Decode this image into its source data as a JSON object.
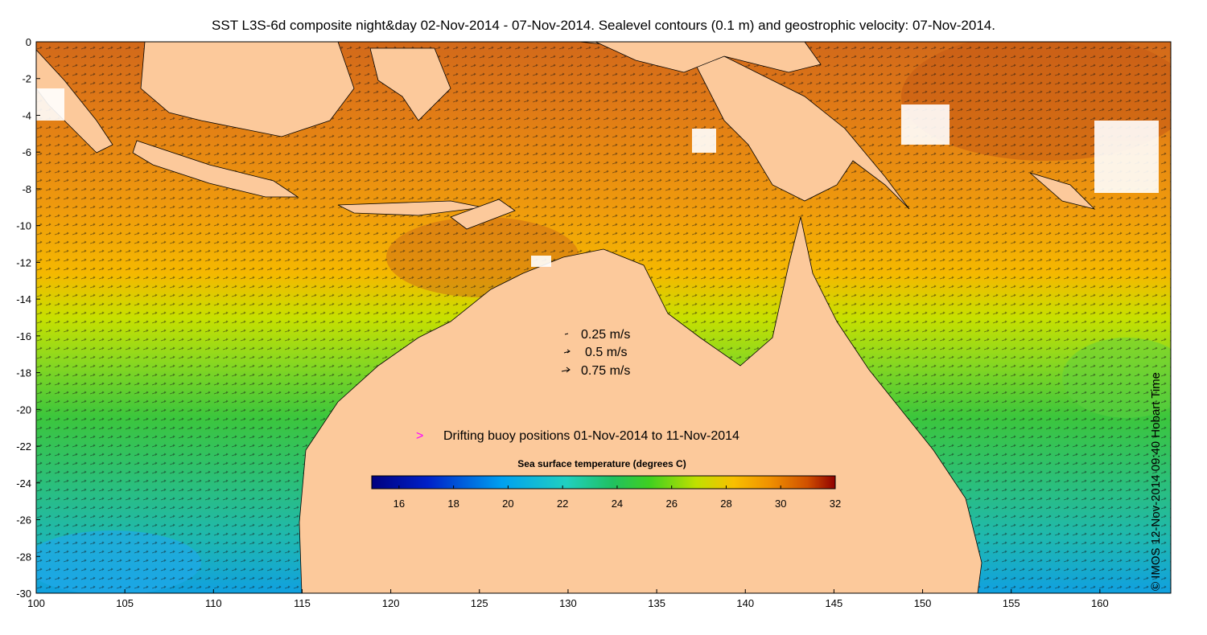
{
  "title": "SST L3S-6d composite night&day 02-Nov-2014 - 07-Nov-2014. Sealevel contours (0.1 m) and geostrophic velocity: 07-Nov-2014.",
  "credit": "© IMOS 12-Nov-2014 09:40 Hobart Time",
  "x_ticks": [
    "100",
    "105",
    "110",
    "115",
    "120",
    "125",
    "130",
    "135",
    "140",
    "145",
    "150",
    "155",
    "160"
  ],
  "y_ticks": [
    "0",
    "-2",
    "-4",
    "-6",
    "-8",
    "-10",
    "-12",
    "-14",
    "-16",
    "-18",
    "-20",
    "-22",
    "-24",
    "-26",
    "-28",
    "-30"
  ],
  "velocity_legend": [
    {
      "speed": 0.25,
      "label": "0.25 m/s"
    },
    {
      "speed": 0.5,
      "label": "0.5 m/s"
    },
    {
      "speed": 0.75,
      "label": "0.75 m/s"
    }
  ],
  "buoy_legend": {
    "symbol": ">",
    "label": "Drifting buoy positions 01-Nov-2014 to 11-Nov-2014",
    "color": "#ff00ff"
  },
  "colorbar": {
    "title": "Sea surface temperature (degrees C)",
    "min": 15,
    "max": 32,
    "tick_labels": [
      "16",
      "18",
      "20",
      "22",
      "24",
      "26",
      "28",
      "30",
      "32"
    ]
  },
  "map_extent": {
    "lon": [
      100,
      164
    ],
    "lat": [
      -30,
      0
    ]
  },
  "colors": {
    "land": "#fcc99b",
    "warm_sst": "#e07a16",
    "mid_sst": "#f5b800",
    "cool_sst": "#3cc63c",
    "coolest_sst": "#00b0e8"
  }
}
